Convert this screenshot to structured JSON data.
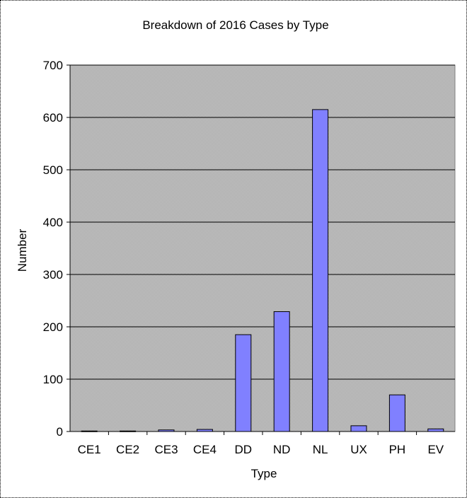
{
  "chart_data": {
    "type": "bar",
    "title": "Breakdown of 2016 Cases by Type",
    "xlabel": "Type",
    "ylabel": "Number",
    "categories": [
      "CE1",
      "CE2",
      "CE3",
      "CE4",
      "DD",
      "ND",
      "NL",
      "UX",
      "PH",
      "EV"
    ],
    "values": [
      1,
      1,
      3,
      4,
      185,
      229,
      615,
      11,
      70,
      5
    ],
    "ylim": [
      0,
      700
    ],
    "yticks": [
      "0",
      "100",
      "200",
      "300",
      "400",
      "500",
      "600",
      "700"
    ],
    "grid": true,
    "colors": {
      "bar_fill": "#8080ff",
      "bar_stroke": "#000000",
      "plot_background": "#c0c0c0",
      "gridline": "#000000"
    }
  }
}
